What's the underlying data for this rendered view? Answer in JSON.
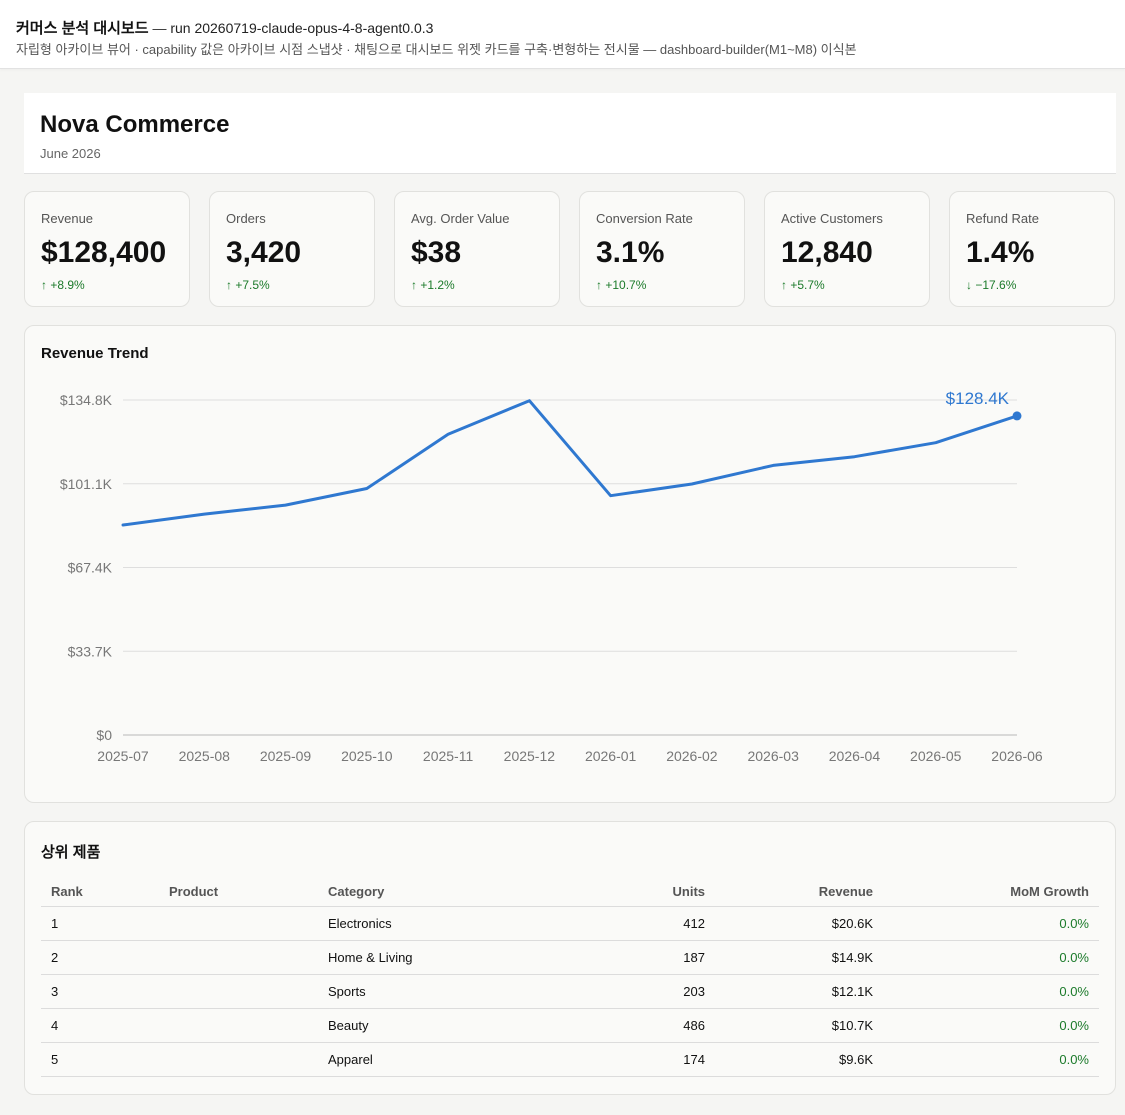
{
  "topbar": {
    "title": "커머스 분석 대시보드",
    "separator": "—",
    "run_label": "run 20260719-claude-opus-4-8-agent0.0.3",
    "subtitle": "자립형 아카이브 뷰어 · capability 값은 아카이브 시점 스냅샷 · 채팅으로 대시보드 위젯 카드를 구축·변형하는 전시물 — dashboard-builder(M1~M8) 이식본"
  },
  "header": {
    "title": "Nova Commerce",
    "period": "June 2026"
  },
  "kpis": [
    {
      "label": "Revenue",
      "value": "$128,400",
      "delta": "↑ +8.9%"
    },
    {
      "label": "Orders",
      "value": "3,420",
      "delta": "↑ +7.5%"
    },
    {
      "label": "Avg. Order Value",
      "value": "$38",
      "delta": "↑ +1.2%"
    },
    {
      "label": "Conversion Rate",
      "value": "3.1%",
      "delta": "↑ +10.7%"
    },
    {
      "label": "Active Customers",
      "value": "12,840",
      "delta": "↑ +5.7%"
    },
    {
      "label": "Refund Rate",
      "value": "1.4%",
      "delta": "↓ −17.6%"
    }
  ],
  "revenue_trend": {
    "title": "Revenue Trend",
    "last_point_label": "$128.4K"
  },
  "chart_data": {
    "type": "line",
    "title": "Revenue Trend",
    "x": [
      "2025-07",
      "2025-08",
      "2025-09",
      "2025-10",
      "2025-11",
      "2025-12",
      "2026-01",
      "2026-02",
      "2026-03",
      "2026-04",
      "2026-05",
      "2026-06"
    ],
    "series": [
      {
        "values": [
          84500,
          88900,
          92500,
          99200,
          121000,
          134500,
          96300,
          101000,
          108500,
          112000,
          117600,
          128400
        ]
      }
    ],
    "y_ticks": [
      "$0",
      "$33.7K",
      "$67.4K",
      "$101.1K",
      "$134.8K"
    ],
    "ylim": [
      0,
      134800
    ],
    "grid": "horizontal",
    "line_color": "#2f78d0"
  },
  "top_products": {
    "title": "상위 제품",
    "columns": [
      "Rank",
      "Product",
      "Category",
      "Units",
      "Revenue",
      "MoM Growth"
    ],
    "rows": [
      {
        "rank": "1",
        "product": "",
        "category": "Electronics",
        "units": "412",
        "revenue": "$20.6K",
        "growth": "0.0%"
      },
      {
        "rank": "2",
        "product": "",
        "category": "Home & Living",
        "units": "187",
        "revenue": "$14.9K",
        "growth": "0.0%"
      },
      {
        "rank": "3",
        "product": "",
        "category": "Sports",
        "units": "203",
        "revenue": "$12.1K",
        "growth": "0.0%"
      },
      {
        "rank": "4",
        "product": "",
        "category": "Beauty",
        "units": "486",
        "revenue": "$10.7K",
        "growth": "0.0%"
      },
      {
        "rank": "5",
        "product": "",
        "category": "Apparel",
        "units": "174",
        "revenue": "$9.6K",
        "growth": "0.0%"
      }
    ]
  },
  "colors": {
    "accent": "#2f78d0",
    "positive": "#1b7a2a"
  }
}
